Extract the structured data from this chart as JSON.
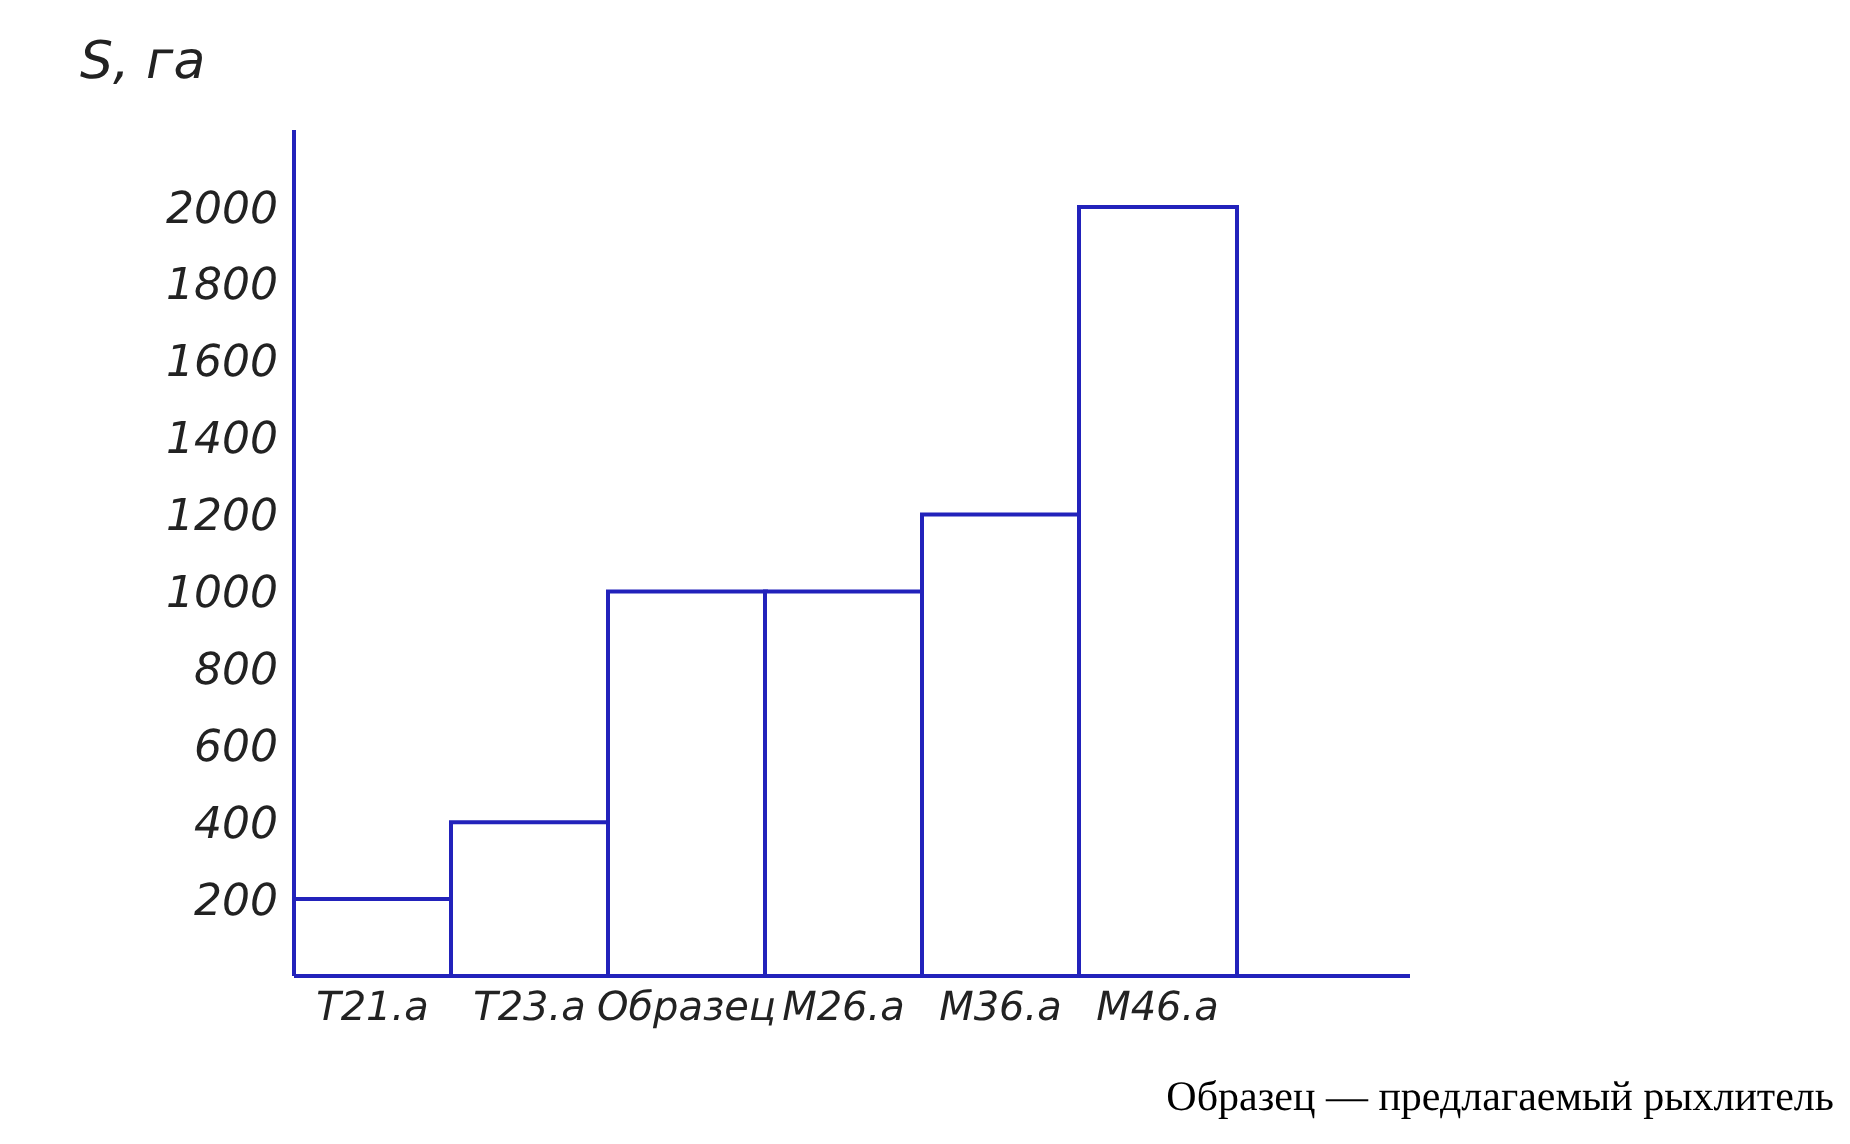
{
  "chart_data": {
    "type": "bar",
    "ylabel": "S, га",
    "categories": [
      "T21.a",
      "T23.a",
      "Образец",
      "M26.a",
      "M36.a",
      "M46.a"
    ],
    "values": [
      200,
      400,
      1000,
      1000,
      1200,
      2000
    ],
    "color": "#2222bb",
    "ylim": [
      0,
      2200
    ],
    "yticks": [
      200,
      400,
      600,
      800,
      1000,
      1200,
      1400,
      1600,
      1800,
      2000
    ],
    "annotations": [
      "Образец — предлагаемый рыхлитель"
    ]
  }
}
